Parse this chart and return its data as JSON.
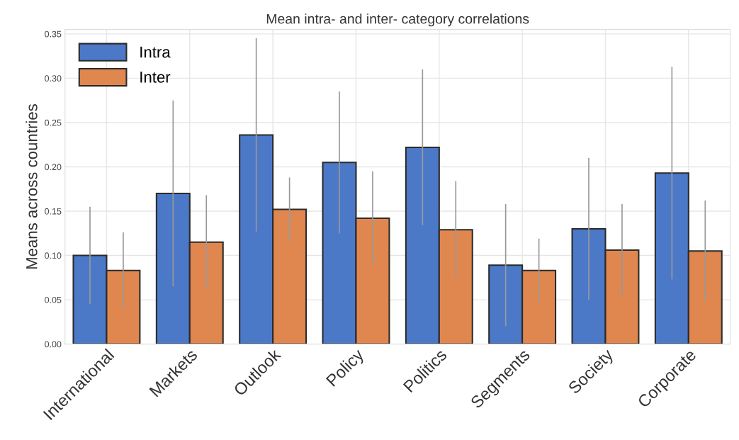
{
  "chart_data": {
    "type": "bar",
    "title": "Mean intra- and inter- category correlations",
    "ylabel": "Means across countries",
    "categories": [
      "International",
      "Markets",
      "Outlook",
      "Policy",
      "Politics",
      "Segments",
      "Society",
      "Corporate"
    ],
    "series": [
      {
        "name": "Intra",
        "color": "#4c78c8",
        "values": [
          0.1,
          0.17,
          0.236,
          0.205,
          0.222,
          0.089,
          0.13,
          0.193
        ],
        "errors": [
          0.055,
          0.105,
          0.109,
          0.08,
          0.088,
          0.069,
          0.08,
          0.12
        ]
      },
      {
        "name": "Inter",
        "color": "#e0874f",
        "values": [
          0.083,
          0.115,
          0.152,
          0.142,
          0.129,
          0.083,
          0.106,
          0.105
        ],
        "errors": [
          0.043,
          0.053,
          0.036,
          0.053,
          0.055,
          0.036,
          0.052,
          0.057
        ]
      }
    ],
    "ylim": [
      0,
      0.355
    ],
    "yticks": [
      {
        "value": 0,
        "label": "0.00"
      },
      {
        "value": 0.05,
        "label": "0.05"
      },
      {
        "value": 0.1,
        "label": "0.10"
      },
      {
        "value": 0.15,
        "label": "0.15"
      },
      {
        "value": 0.2,
        "label": "0.20"
      },
      {
        "value": 0.25,
        "label": "0.25"
      },
      {
        "value": 0.3,
        "label": "0.30"
      },
      {
        "value": 0.35,
        "label": "0.35"
      }
    ],
    "grid": true,
    "legend": "top left"
  }
}
